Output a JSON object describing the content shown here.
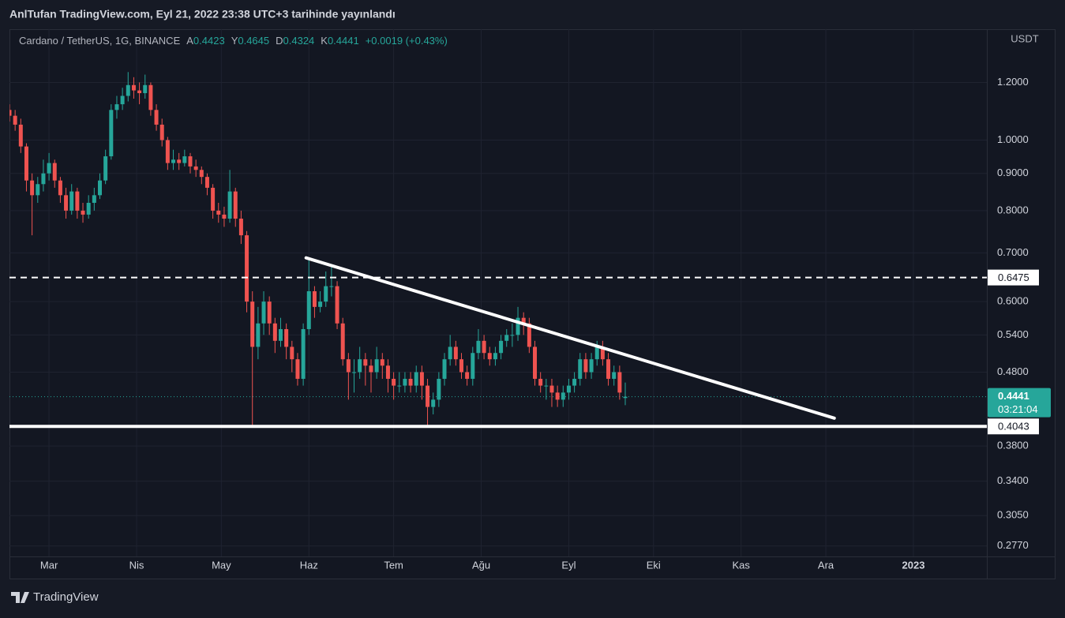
{
  "header": {
    "text": "AnlTufan TradingView.com, Eyl 21, 2022 23:38 UTC+3 tarihinde yayınlandı"
  },
  "chart_data": {
    "type": "candlestick",
    "title": "Cardano / TetherUS, 1G, BINANCE",
    "legend": [
      {
        "label": "A",
        "value": 0.4423
      },
      {
        "label": "Y",
        "value": 0.4645
      },
      {
        "label": "D",
        "value": 0.4324
      },
      {
        "label": "K",
        "value": 0.4441
      }
    ],
    "change": "+0.0019 (+0.43%)",
    "currency": "USDT",
    "up_color": "#26a69a",
    "down_color": "#ef5350",
    "log_scale": true,
    "grid": true,
    "xlim": [
      0,
      346
    ],
    "xticks": [
      {
        "value": 14,
        "label": "Mar"
      },
      {
        "value": 45,
        "label": "Nis"
      },
      {
        "value": 75,
        "label": "May"
      },
      {
        "value": 106,
        "label": "Haz"
      },
      {
        "value": 136,
        "label": "Tem"
      },
      {
        "value": 167,
        "label": "Ağu"
      },
      {
        "value": 198,
        "label": "Eyl"
      },
      {
        "value": 228,
        "label": "Eki"
      },
      {
        "value": 259,
        "label": "Kas"
      },
      {
        "value": 289,
        "label": "Ara"
      },
      {
        "value": 320,
        "label": "2023"
      }
    ],
    "ylim": [
      0.268,
      1.42
    ],
    "yticks": [
      {
        "value": 1.2,
        "label": "1.2000"
      },
      {
        "value": 1.0,
        "label": "1.0000"
      },
      {
        "value": 0.9,
        "label": "0.9000"
      },
      {
        "value": 0.8,
        "label": "0.8000"
      },
      {
        "value": 0.7,
        "label": "0.7000"
      },
      {
        "value": 0.6,
        "label": "0.6000"
      },
      {
        "value": 0.54,
        "label": "0.5400"
      },
      {
        "value": 0.48,
        "label": "0.4800"
      },
      {
        "value": 0.38,
        "label": "0.3800"
      },
      {
        "value": 0.34,
        "label": "0.3400"
      },
      {
        "value": 0.305,
        "label": "0.3050"
      },
      {
        "value": 0.277,
        "label": "0.2770"
      }
    ],
    "x": [
      0,
      2,
      4,
      6,
      8,
      10,
      12,
      14,
      16,
      18,
      20,
      22,
      24,
      26,
      28,
      30,
      32,
      34,
      36,
      38,
      40,
      42,
      44,
      46,
      48,
      50,
      52,
      54,
      56,
      58,
      60,
      62,
      64,
      66,
      68,
      70,
      72,
      74,
      76,
      78,
      80,
      82,
      84,
      86,
      88,
      90,
      92,
      94,
      96,
      98,
      100,
      102,
      104,
      106,
      108,
      110,
      112,
      114,
      116,
      118,
      120,
      122,
      124,
      126,
      128,
      130,
      132,
      134,
      136,
      138,
      140,
      142,
      144,
      146,
      148,
      150,
      152,
      154,
      156,
      158,
      160,
      162,
      164,
      166,
      168,
      170,
      172,
      174,
      176,
      178,
      180,
      182,
      184,
      186,
      188,
      190,
      192,
      194,
      196,
      198,
      200,
      202,
      204,
      206,
      208,
      210,
      212,
      214,
      216,
      218
    ],
    "ohlc": [
      [
        1.1,
        1.12,
        1.06,
        1.08
      ],
      [
        1.08,
        1.1,
        1.03,
        1.05
      ],
      [
        1.05,
        1.07,
        0.96,
        0.98
      ],
      [
        0.98,
        0.99,
        0.85,
        0.88
      ],
      [
        0.88,
        0.9,
        0.74,
        0.84
      ],
      [
        0.84,
        0.89,
        0.82,
        0.87
      ],
      [
        0.87,
        0.94,
        0.85,
        0.9
      ],
      [
        0.9,
        0.96,
        0.88,
        0.93
      ],
      [
        0.93,
        0.94,
        0.86,
        0.88
      ],
      [
        0.88,
        0.89,
        0.82,
        0.84
      ],
      [
        0.84,
        0.86,
        0.78,
        0.8
      ],
      [
        0.8,
        0.87,
        0.79,
        0.85
      ],
      [
        0.85,
        0.86,
        0.78,
        0.8
      ],
      [
        0.8,
        0.82,
        0.77,
        0.79
      ],
      [
        0.79,
        0.84,
        0.78,
        0.82
      ],
      [
        0.82,
        0.86,
        0.8,
        0.84
      ],
      [
        0.84,
        0.9,
        0.83,
        0.88
      ],
      [
        0.88,
        0.97,
        0.87,
        0.95
      ],
      [
        0.95,
        1.12,
        0.94,
        1.1
      ],
      [
        1.1,
        1.15,
        1.07,
        1.12
      ],
      [
        1.12,
        1.18,
        1.1,
        1.15
      ],
      [
        1.15,
        1.24,
        1.13,
        1.19
      ],
      [
        1.19,
        1.22,
        1.14,
        1.17
      ],
      [
        1.17,
        1.2,
        1.12,
        1.16
      ],
      [
        1.16,
        1.23,
        1.14,
        1.19
      ],
      [
        1.19,
        1.2,
        1.08,
        1.1
      ],
      [
        1.1,
        1.12,
        1.03,
        1.05
      ],
      [
        1.05,
        1.07,
        0.98,
        1.0
      ],
      [
        1.0,
        1.01,
        0.91,
        0.93
      ],
      [
        0.93,
        0.97,
        0.91,
        0.94
      ],
      [
        0.94,
        0.96,
        0.91,
        0.93
      ],
      [
        0.93,
        0.97,
        0.92,
        0.95
      ],
      [
        0.95,
        0.96,
        0.9,
        0.92
      ],
      [
        0.92,
        0.94,
        0.89,
        0.91
      ],
      [
        0.91,
        0.92,
        0.87,
        0.89
      ],
      [
        0.89,
        0.9,
        0.84,
        0.86
      ],
      [
        0.86,
        0.87,
        0.78,
        0.8
      ],
      [
        0.8,
        0.82,
        0.77,
        0.79
      ],
      [
        0.79,
        0.81,
        0.76,
        0.78
      ],
      [
        0.78,
        0.91,
        0.77,
        0.85
      ],
      [
        0.85,
        0.86,
        0.76,
        0.78
      ],
      [
        0.78,
        0.8,
        0.72,
        0.74
      ],
      [
        0.74,
        0.75,
        0.58,
        0.6
      ],
      [
        0.6,
        0.62,
        0.404,
        0.52
      ],
      [
        0.52,
        0.59,
        0.5,
        0.56
      ],
      [
        0.56,
        0.62,
        0.54,
        0.6
      ],
      [
        0.6,
        0.61,
        0.54,
        0.56
      ],
      [
        0.56,
        0.57,
        0.51,
        0.53
      ],
      [
        0.53,
        0.57,
        0.52,
        0.55
      ],
      [
        0.55,
        0.56,
        0.5,
        0.52
      ],
      [
        0.52,
        0.53,
        0.48,
        0.5
      ],
      [
        0.5,
        0.51,
        0.46,
        0.47
      ],
      [
        0.47,
        0.56,
        0.46,
        0.55
      ],
      [
        0.55,
        0.69,
        0.54,
        0.62
      ],
      [
        0.62,
        0.63,
        0.57,
        0.59
      ],
      [
        0.59,
        0.62,
        0.58,
        0.6
      ],
      [
        0.6,
        0.66,
        0.59,
        0.63
      ],
      [
        0.63,
        0.67,
        0.61,
        0.63
      ],
      [
        0.63,
        0.64,
        0.55,
        0.56
      ],
      [
        0.56,
        0.57,
        0.49,
        0.5
      ],
      [
        0.5,
        0.51,
        0.44,
        0.48
      ],
      [
        0.48,
        0.5,
        0.45,
        0.48
      ],
      [
        0.48,
        0.52,
        0.47,
        0.5
      ],
      [
        0.5,
        0.51,
        0.46,
        0.49
      ],
      [
        0.49,
        0.5,
        0.45,
        0.48
      ],
      [
        0.48,
        0.52,
        0.47,
        0.5
      ],
      [
        0.5,
        0.51,
        0.47,
        0.49
      ],
      [
        0.49,
        0.5,
        0.45,
        0.47
      ],
      [
        0.47,
        0.48,
        0.44,
        0.46
      ],
      [
        0.46,
        0.48,
        0.45,
        0.46
      ],
      [
        0.46,
        0.48,
        0.45,
        0.47
      ],
      [
        0.47,
        0.48,
        0.45,
        0.46
      ],
      [
        0.46,
        0.49,
        0.45,
        0.48
      ],
      [
        0.48,
        0.49,
        0.44,
        0.46
      ],
      [
        0.46,
        0.47,
        0.405,
        0.43
      ],
      [
        0.43,
        0.45,
        0.42,
        0.44
      ],
      [
        0.44,
        0.48,
        0.43,
        0.47
      ],
      [
        0.47,
        0.51,
        0.46,
        0.5
      ],
      [
        0.5,
        0.54,
        0.49,
        0.52
      ],
      [
        0.52,
        0.53,
        0.49,
        0.5
      ],
      [
        0.5,
        0.51,
        0.47,
        0.48
      ],
      [
        0.48,
        0.49,
        0.46,
        0.47
      ],
      [
        0.47,
        0.52,
        0.46,
        0.51
      ],
      [
        0.51,
        0.55,
        0.5,
        0.53
      ],
      [
        0.53,
        0.54,
        0.5,
        0.51
      ],
      [
        0.51,
        0.52,
        0.49,
        0.5
      ],
      [
        0.5,
        0.52,
        0.49,
        0.51
      ],
      [
        0.51,
        0.54,
        0.5,
        0.53
      ],
      [
        0.53,
        0.55,
        0.52,
        0.54
      ],
      [
        0.54,
        0.56,
        0.52,
        0.54
      ],
      [
        0.54,
        0.59,
        0.53,
        0.57
      ],
      [
        0.57,
        0.58,
        0.54,
        0.56
      ],
      [
        0.56,
        0.57,
        0.51,
        0.52
      ],
      [
        0.52,
        0.53,
        0.46,
        0.47
      ],
      [
        0.47,
        0.48,
        0.45,
        0.46
      ],
      [
        0.46,
        0.47,
        0.44,
        0.46
      ],
      [
        0.46,
        0.47,
        0.43,
        0.45
      ],
      [
        0.45,
        0.46,
        0.43,
        0.44
      ],
      [
        0.44,
        0.46,
        0.43,
        0.45
      ],
      [
        0.45,
        0.47,
        0.44,
        0.46
      ],
      [
        0.46,
        0.48,
        0.45,
        0.47
      ],
      [
        0.47,
        0.51,
        0.46,
        0.5
      ],
      [
        0.5,
        0.51,
        0.47,
        0.48
      ],
      [
        0.48,
        0.51,
        0.47,
        0.5
      ],
      [
        0.5,
        0.53,
        0.49,
        0.52
      ],
      [
        0.52,
        0.53,
        0.49,
        0.5
      ],
      [
        0.5,
        0.51,
        0.46,
        0.47
      ],
      [
        0.47,
        0.49,
        0.46,
        0.48
      ],
      [
        0.48,
        0.49,
        0.44,
        0.45
      ],
      [
        0.4423,
        0.4645,
        0.4324,
        0.4441
      ]
    ],
    "hlines": [
      {
        "value": 0.6475,
        "style": "dashed"
      },
      {
        "value": 0.4043,
        "style": "solid"
      }
    ],
    "trendline": {
      "x": [
        105,
        292
      ],
      "y": [
        0.689,
        0.415
      ]
    },
    "last_price": 0.4441,
    "countdown": "03:21:04"
  },
  "footer": {
    "brand": "TradingView"
  }
}
